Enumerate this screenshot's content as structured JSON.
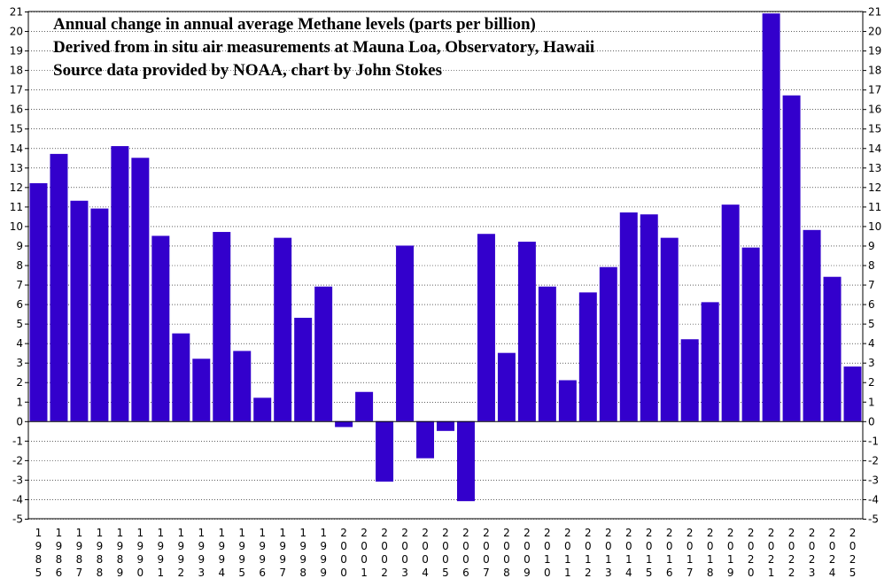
{
  "chart_data": {
    "type": "bar",
    "title": [
      "Annual change in annual average Methane levels (parts per billion)",
      "Derived from in situ air measurements at Mauna Loa, Observatory, Hawaii",
      "Source data provided by NOAA, chart by John Stokes"
    ],
    "categories": [
      "1985",
      "1986",
      "1987",
      "1988",
      "1989",
      "1990",
      "1991",
      "1992",
      "1993",
      "1994",
      "1995",
      "1996",
      "1997",
      "1998",
      "1999",
      "2000",
      "2001",
      "2002",
      "2003",
      "2004",
      "2005",
      "2006",
      "2007",
      "2008",
      "2009",
      "2010",
      "2011",
      "2012",
      "2013",
      "2014",
      "2015",
      "2016",
      "2017",
      "2018",
      "2019",
      "2020",
      "2021",
      "2022",
      "2023",
      "2024",
      "2025"
    ],
    "values": [
      12.2,
      13.7,
      11.3,
      10.9,
      14.1,
      13.5,
      9.5,
      4.5,
      3.2,
      9.7,
      3.6,
      1.2,
      9.4,
      5.3,
      6.9,
      -0.3,
      1.5,
      -3.1,
      9.0,
      -1.9,
      -0.5,
      -4.1,
      9.6,
      3.5,
      9.2,
      6.9,
      2.1,
      6.6,
      7.9,
      10.7,
      10.6,
      9.4,
      4.2,
      6.1,
      11.1,
      8.9,
      20.9,
      16.7,
      9.8,
      7.4,
      2.8
    ],
    "ylim": [
      -5,
      21
    ],
    "yticks": [
      "-5",
      "-4",
      "-3",
      "-2",
      "-1",
      "0",
      "1",
      "2",
      "3",
      "4",
      "5",
      "6",
      "7",
      "8",
      "9",
      "10",
      "11",
      "12",
      "13",
      "14",
      "15",
      "16",
      "17",
      "18",
      "19",
      "20",
      "21"
    ],
    "bar_color": "#3300cc",
    "grid": "horizontal dotted",
    "legend": "none"
  }
}
